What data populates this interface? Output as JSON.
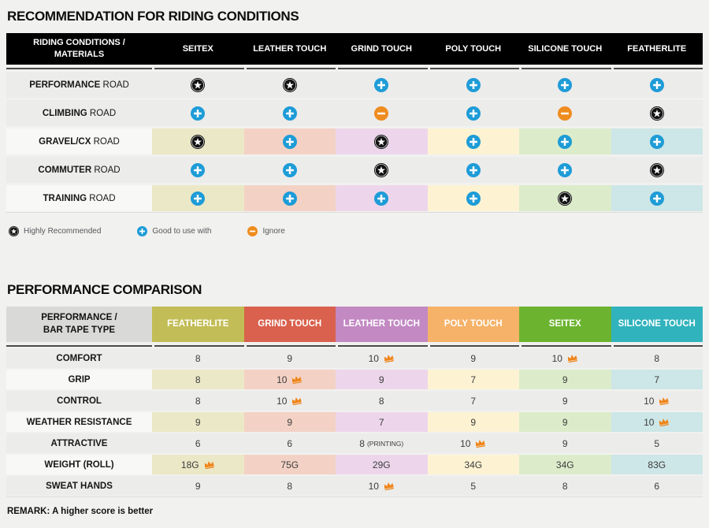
{
  "colors": {
    "page_bg": "#f1f1ef",
    "header1_bg": "#000000",
    "divider": "#4a4a4a",
    "plain_row_bg": "#ececeb",
    "light_label_bg": "#f8f8f6",
    "pale_column_bg": [
      "#ebe8c7",
      "#f3d2c5",
      "#edd6ec",
      "#fdf3d3",
      "#dcecca",
      "#cde6e7"
    ],
    "star_icon_bg": "#121212",
    "plus_icon_bg": "#1e9cd7",
    "minus_icon_bg": "#ef8c1f",
    "crown_icon": "#f08519"
  },
  "chart_data": [
    {
      "type": "table",
      "title": "RECOMMENDATION FOR RIDING CONDITIONS",
      "corner_line1": "RIDING CONDITIONS /",
      "corner_line2": "MATERIALS",
      "columns": [
        "SEITEX",
        "LEATHER TOUCH",
        "GRIND TOUCH",
        "POLY TOUCH",
        "SILICONE TOUCH",
        "FEATHERLITE"
      ],
      "rows": [
        {
          "label_bold": "PERFORMANCE",
          "label_rest": "ROAD",
          "colored": false,
          "cells": [
            "star",
            "star",
            "plus",
            "plus",
            "plus",
            "plus"
          ]
        },
        {
          "label_bold": "CLIMBING",
          "label_rest": "ROAD",
          "colored": false,
          "cells": [
            "plus",
            "plus",
            "minus",
            "plus",
            "minus",
            "star"
          ]
        },
        {
          "label_bold": "GRAVEL/CX",
          "label_rest": "ROAD",
          "colored": true,
          "cells": [
            "star",
            "plus",
            "star",
            "plus",
            "plus",
            "plus"
          ]
        },
        {
          "label_bold": "COMMUTER",
          "label_rest": "ROAD",
          "colored": false,
          "cells": [
            "plus",
            "plus",
            "star",
            "plus",
            "plus",
            "star"
          ]
        },
        {
          "label_bold": "TRAINING",
          "label_rest": "ROAD",
          "colored": true,
          "cells": [
            "plus",
            "plus",
            "plus",
            "plus",
            "star",
            "plus"
          ]
        }
      ],
      "legend": [
        {
          "icon": "star",
          "label": "Highly Recommended"
        },
        {
          "icon": "plus",
          "label": "Good to use with"
        },
        {
          "icon": "minus",
          "label": "Ignore"
        }
      ]
    },
    {
      "type": "table",
      "title": "PERFORMANCE COMPARISON",
      "corner_line1": "PERFORMANCE /",
      "corner_line2": "BAR TAPE TYPE",
      "columns": [
        {
          "label": "FEATHERLITE",
          "color": "#c2bd56"
        },
        {
          "label": "GRIND TOUCH",
          "color": "#d9614d"
        },
        {
          "label": "LEATHER TOUCH",
          "color": "#c289c3"
        },
        {
          "label": "POLY TOUCH",
          "color": "#f6b268"
        },
        {
          "label": "SEITEX",
          "color": "#6cb42f"
        },
        {
          "label": "SILICONE TOUCH",
          "color": "#30b3bd"
        }
      ],
      "rows": [
        {
          "label": "COMFORT",
          "colored": false,
          "cells": [
            {
              "value": "8"
            },
            {
              "value": "9"
            },
            {
              "value": "10",
              "crown": true
            },
            {
              "value": "9"
            },
            {
              "value": "10",
              "crown": true
            },
            {
              "value": "8"
            }
          ]
        },
        {
          "label": "GRIP",
          "colored": true,
          "cells": [
            {
              "value": "8"
            },
            {
              "value": "10",
              "crown": true
            },
            {
              "value": "9"
            },
            {
              "value": "7"
            },
            {
              "value": "9"
            },
            {
              "value": "7"
            }
          ]
        },
        {
          "label": "CONTROL",
          "colored": false,
          "cells": [
            {
              "value": "8"
            },
            {
              "value": "10",
              "crown": true
            },
            {
              "value": "8"
            },
            {
              "value": "7"
            },
            {
              "value": "9"
            },
            {
              "value": "10",
              "crown": true
            }
          ]
        },
        {
          "label": "WEATHER RESISTANCE",
          "colored": true,
          "cells": [
            {
              "value": "9"
            },
            {
              "value": "9"
            },
            {
              "value": "7"
            },
            {
              "value": "9"
            },
            {
              "value": "9"
            },
            {
              "value": "10",
              "crown": true
            }
          ]
        },
        {
          "label": "ATTRACTIVE",
          "colored": false,
          "cells": [
            {
              "value": "6"
            },
            {
              "value": "6"
            },
            {
              "value": "8",
              "suffix": "(PRINTING)"
            },
            {
              "value": "10",
              "crown": true
            },
            {
              "value": "9"
            },
            {
              "value": "5"
            }
          ]
        },
        {
          "label": "WEIGHT (ROLL)",
          "colored": true,
          "cells": [
            {
              "value": "18G",
              "crown": true
            },
            {
              "value": "75G"
            },
            {
              "value": "29G"
            },
            {
              "value": "34G"
            },
            {
              "value": "34G"
            },
            {
              "value": "83G"
            }
          ]
        },
        {
          "label": "SWEAT HANDS",
          "colored": false,
          "cells": [
            {
              "value": "9"
            },
            {
              "value": "8"
            },
            {
              "value": "10",
              "crown": true
            },
            {
              "value": "5"
            },
            {
              "value": "8"
            },
            {
              "value": "6"
            }
          ]
        }
      ],
      "remark": "REMARK: A higher score is better"
    }
  ]
}
